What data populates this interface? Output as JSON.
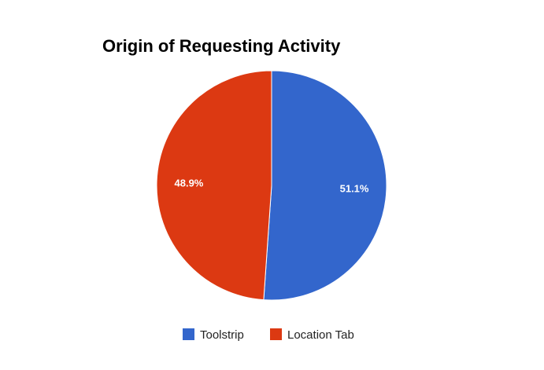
{
  "chart_data": {
    "type": "pie",
    "title": "Origin of Requesting Activity",
    "categories": [
      "Toolstrip",
      "Location Tab"
    ],
    "values": [
      51.1,
      48.9
    ],
    "labels": [
      "51.1%",
      "48.9%"
    ],
    "colors": [
      "#3366cc",
      "#dc3912"
    ],
    "legend_position": "bottom"
  }
}
